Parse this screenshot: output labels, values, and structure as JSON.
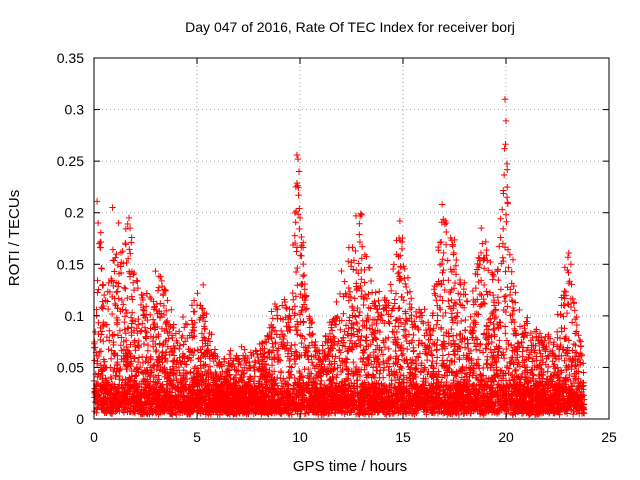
{
  "chart_data": {
    "type": "scatter",
    "title": "Day 047 of 2016, Rate Of TEC Index for receiver borj",
    "xlabel": "GPS time / hours",
    "ylabel": "ROTI / TECUs",
    "xlim": [
      0,
      25
    ],
    "ylim": [
      0,
      0.35
    ],
    "xticks": [
      0,
      5,
      10,
      15,
      20,
      25
    ],
    "yticks": [
      0,
      0.05,
      0.1,
      0.15,
      0.2,
      0.25,
      0.3,
      0.35
    ],
    "xtick_labels": [
      "0",
      "5",
      "10",
      "15",
      "20",
      "25"
    ],
    "ytick_labels": [
      "0",
      "0.05",
      "0.1",
      "0.15",
      "0.2",
      "0.25",
      "0.3",
      "0.35"
    ],
    "grid": true,
    "marker": "plus",
    "color": "#ff0000",
    "legend": false,
    "x_extent_hours": [
      0,
      23.8
    ],
    "envelope": [
      {
        "x": 0.0,
        "y": 0.06
      },
      {
        "x": 0.3,
        "y": 0.2
      },
      {
        "x": 0.6,
        "y": 0.1
      },
      {
        "x": 1.0,
        "y": 0.2
      },
      {
        "x": 1.3,
        "y": 0.18
      },
      {
        "x": 1.7,
        "y": 0.19
      },
      {
        "x": 2.2,
        "y": 0.12
      },
      {
        "x": 2.8,
        "y": 0.13
      },
      {
        "x": 3.2,
        "y": 0.14
      },
      {
        "x": 4.0,
        "y": 0.08
      },
      {
        "x": 4.6,
        "y": 0.1
      },
      {
        "x": 5.2,
        "y": 0.12
      },
      {
        "x": 6.0,
        "y": 0.05
      },
      {
        "x": 7.0,
        "y": 0.06
      },
      {
        "x": 8.0,
        "y": 0.06
      },
      {
        "x": 8.9,
        "y": 0.11
      },
      {
        "x": 9.5,
        "y": 0.12
      },
      {
        "x": 9.9,
        "y": 0.25
      },
      {
        "x": 10.4,
        "y": 0.1
      },
      {
        "x": 11.0,
        "y": 0.06
      },
      {
        "x": 12.2,
        "y": 0.15
      },
      {
        "x": 12.9,
        "y": 0.2
      },
      {
        "x": 13.5,
        "y": 0.13
      },
      {
        "x": 14.2,
        "y": 0.11
      },
      {
        "x": 14.9,
        "y": 0.19
      },
      {
        "x": 15.5,
        "y": 0.1
      },
      {
        "x": 16.4,
        "y": 0.11
      },
      {
        "x": 17.0,
        "y": 0.2
      },
      {
        "x": 17.5,
        "y": 0.17
      },
      {
        "x": 18.2,
        "y": 0.1
      },
      {
        "x": 18.9,
        "y": 0.18
      },
      {
        "x": 19.5,
        "y": 0.12
      },
      {
        "x": 19.9,
        "y": 0.3
      },
      {
        "x": 20.5,
        "y": 0.1
      },
      {
        "x": 21.5,
        "y": 0.08
      },
      {
        "x": 22.3,
        "y": 0.07
      },
      {
        "x": 23.0,
        "y": 0.16
      },
      {
        "x": 23.3,
        "y": 0.12
      },
      {
        "x": 23.8,
        "y": 0.05
      }
    ],
    "spikes": [
      {
        "x": 0.15,
        "y": 0.211
      },
      {
        "x": 0.2,
        "y": 0.19
      },
      {
        "x": 0.25,
        "y": 0.17
      },
      {
        "x": 0.9,
        "y": 0.205
      },
      {
        "x": 1.2,
        "y": 0.19
      },
      {
        "x": 1.7,
        "y": 0.195
      },
      {
        "x": 1.75,
        "y": 0.185
      },
      {
        "x": 5.3,
        "y": 0.13
      },
      {
        "x": 9.85,
        "y": 0.256
      },
      {
        "x": 9.9,
        "y": 0.252
      },
      {
        "x": 9.95,
        "y": 0.24
      },
      {
        "x": 9.8,
        "y": 0.225
      },
      {
        "x": 10.0,
        "y": 0.195
      },
      {
        "x": 12.95,
        "y": 0.199
      },
      {
        "x": 13.0,
        "y": 0.198
      },
      {
        "x": 14.85,
        "y": 0.192
      },
      {
        "x": 14.95,
        "y": 0.165
      },
      {
        "x": 16.9,
        "y": 0.208
      },
      {
        "x": 17.1,
        "y": 0.19
      },
      {
        "x": 18.8,
        "y": 0.185
      },
      {
        "x": 18.85,
        "y": 0.17
      },
      {
        "x": 19.95,
        "y": 0.31
      },
      {
        "x": 20.0,
        "y": 0.289
      },
      {
        "x": 20.05,
        "y": 0.215
      },
      {
        "x": 20.0,
        "y": 0.198
      },
      {
        "x": 19.85,
        "y": 0.17
      },
      {
        "x": 23.05,
        "y": 0.161
      }
    ]
  }
}
